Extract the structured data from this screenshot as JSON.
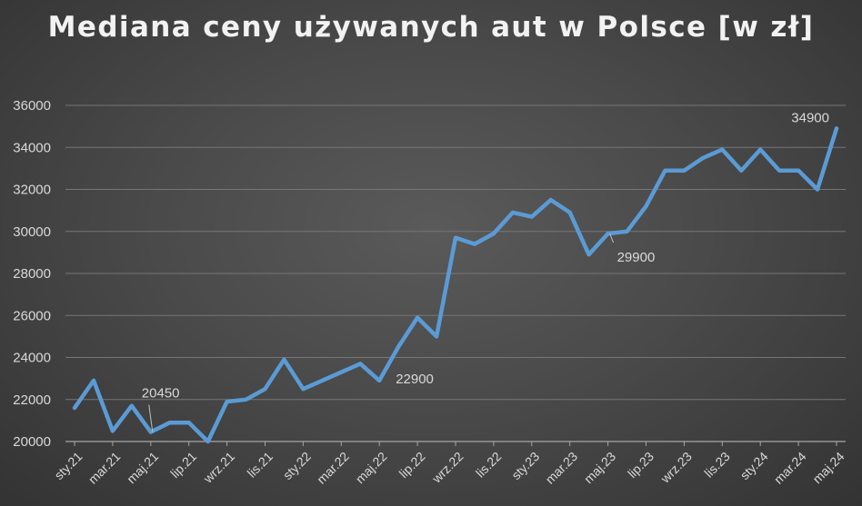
{
  "chart_data": {
    "type": "line",
    "title": "Mediana ceny używanych aut w Polsce [w zł]",
    "xlabel": "",
    "ylabel": "",
    "ylim": [
      20000,
      36000
    ],
    "yticks": [
      20000,
      22000,
      24000,
      26000,
      28000,
      30000,
      32000,
      34000,
      36000
    ],
    "grid": true,
    "legend": "none",
    "line_color": "#5b9bd5",
    "x": [
      "sty.21",
      "lut.21",
      "mar.21",
      "kwi.21",
      "maj.21",
      "cze.21",
      "lip.21",
      "sie.21",
      "wrz.21",
      "paź.21",
      "lis.21",
      "gru.21",
      "sty.22",
      "lut.22",
      "mar.22",
      "kwi.22",
      "maj.22",
      "cze.22",
      "lip.22",
      "sie.22",
      "wrz.22",
      "paź.22",
      "lis.22",
      "gru.22",
      "sty.23",
      "lut.23",
      "mar.23",
      "kwi.23",
      "maj.23",
      "cze.23",
      "lip.23",
      "sie.23",
      "wrz.23",
      "paź.23",
      "lis.23",
      "gru.23",
      "sty.24",
      "lut.24",
      "mar.24",
      "kwi.24",
      "maj.24"
    ],
    "xtick_labels": [
      "sty.21",
      "mar.21",
      "maj.21",
      "lip.21",
      "wrz.21",
      "lis.21",
      "sty.22",
      "mar.22",
      "maj.22",
      "lip.22",
      "wrz.22",
      "lis.22",
      "sty.23",
      "mar.23",
      "maj.23",
      "lip.23",
      "wrz.23",
      "lis.23",
      "sty.24",
      "mar.24",
      "maj.24"
    ],
    "series": [
      {
        "values": [
          21600,
          22900,
          20500,
          21700,
          20450,
          20900,
          20900,
          20000,
          21900,
          22000,
          22500,
          23900,
          22500,
          22900,
          23300,
          23700,
          22900,
          24500,
          25900,
          25000,
          29700,
          29400,
          29900,
          30900,
          30700,
          31500,
          30900,
          28900,
          29900,
          30000,
          31200,
          32900,
          32900,
          33500,
          33900,
          32900,
          33900,
          32900,
          32900,
          32000,
          34900
        ]
      }
    ],
    "annotations": [
      {
        "label": "20450",
        "index": 4
      },
      {
        "label": "22900",
        "index": 16
      },
      {
        "label": "29900",
        "index": 28
      },
      {
        "label": "34900",
        "index": 40
      }
    ]
  }
}
